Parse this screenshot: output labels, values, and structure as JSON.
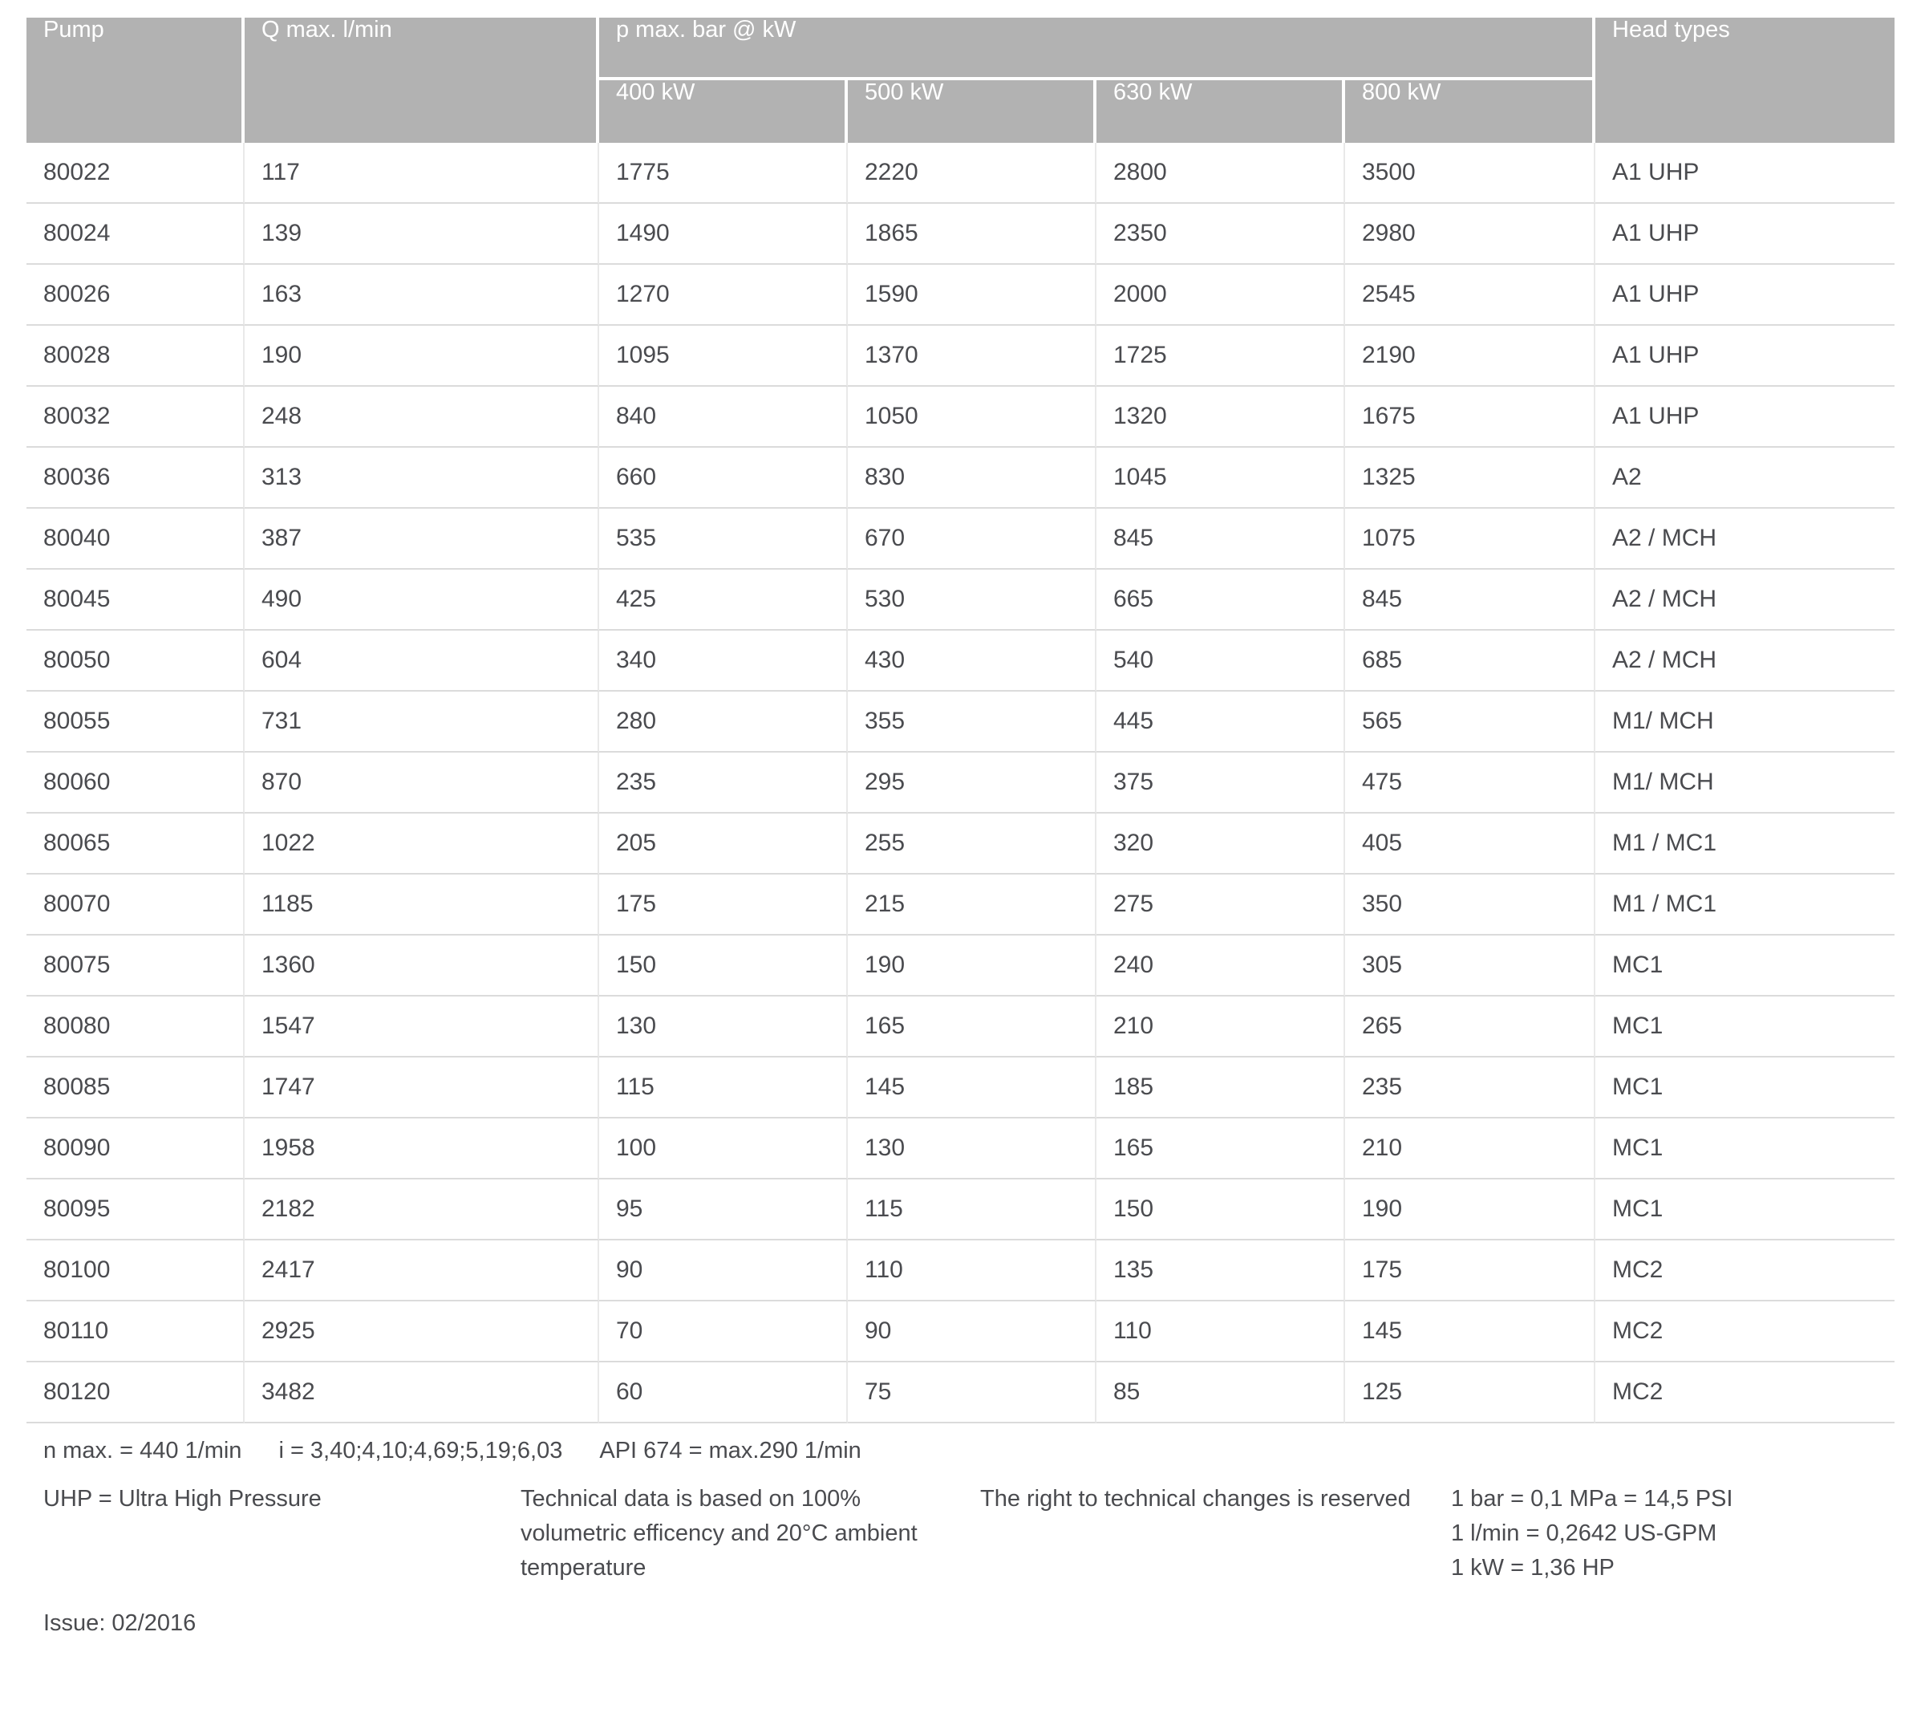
{
  "table": {
    "headers": {
      "pump": "Pump",
      "q_max": "Q max. l/min",
      "p_max_group": "p max. bar @ kW",
      "kw": [
        "400 kW",
        "500 kW",
        "630 kW",
        "800 kW"
      ],
      "head_types": "Head types"
    },
    "rows": [
      [
        "80022",
        "117",
        "1775",
        "2220",
        "2800",
        "3500",
        "A1 UHP"
      ],
      [
        "80024",
        "139",
        "1490",
        "1865",
        "2350",
        "2980",
        "A1 UHP"
      ],
      [
        "80026",
        "163",
        "1270",
        "1590",
        "2000",
        "2545",
        "A1 UHP"
      ],
      [
        "80028",
        "190",
        "1095",
        "1370",
        "1725",
        "2190",
        "A1 UHP"
      ],
      [
        "80032",
        "248",
        "840",
        "1050",
        "1320",
        "1675",
        "A1 UHP"
      ],
      [
        "80036",
        "313",
        "660",
        "830",
        "1045",
        "1325",
        "A2"
      ],
      [
        "80040",
        "387",
        "535",
        "670",
        "845",
        "1075",
        "A2 / MCH"
      ],
      [
        "80045",
        "490",
        "425",
        "530",
        "665",
        "845",
        "A2 / MCH"
      ],
      [
        "80050",
        "604",
        "340",
        "430",
        "540",
        "685",
        "A2 / MCH"
      ],
      [
        "80055",
        "731",
        "280",
        "355",
        "445",
        "565",
        "M1/ MCH"
      ],
      [
        "80060",
        "870",
        "235",
        "295",
        "375",
        "475",
        "M1/ MCH"
      ],
      [
        "80065",
        "1022",
        "205",
        "255",
        "320",
        "405",
        "M1 / MC1"
      ],
      [
        "80070",
        "1185",
        "175",
        "215",
        "275",
        "350",
        "M1 / MC1"
      ],
      [
        "80075",
        "1360",
        "150",
        "190",
        "240",
        "305",
        "MC1"
      ],
      [
        "80080",
        "1547",
        "130",
        "165",
        "210",
        "265",
        "MC1"
      ],
      [
        "80085",
        "1747",
        "115",
        "145",
        "185",
        "235",
        "MC1"
      ],
      [
        "80090",
        "1958",
        "100",
        "130",
        "165",
        "210",
        "MC1"
      ],
      [
        "80095",
        "2182",
        "95",
        "115",
        "150",
        "190",
        "MC1"
      ],
      [
        "80100",
        "2417",
        "90",
        "110",
        "135",
        "175",
        "MC2"
      ],
      [
        "80110",
        "2925",
        "70",
        "90",
        "110",
        "145",
        "MC2"
      ],
      [
        "80120",
        "3482",
        "60",
        "75",
        "85",
        "125",
        "MC2"
      ]
    ]
  },
  "footnotes": {
    "line1": [
      "n max. = 440 1/min",
      "i = 3,40;4,10;4,69;5,19;6,03",
      "API 674 = max.290 1/min"
    ],
    "uhp": "UHP = Ultra High Pressure",
    "technical_lines": [
      "Technical data is based on 100%",
      "volumetric efficency and 20°C ambient",
      "temperature"
    ],
    "rights": "The right to technical changes is reserved",
    "conversions": [
      "1 bar = 0,1 MPa = 14,5 PSI",
      "1 l/min = 0,2642 US-GPM",
      "1 kW = 1,36 HP"
    ],
    "issue": "Issue: 02/2016"
  },
  "colors": {
    "header_bg": "#b2b2b2",
    "header_text": "#ffffff",
    "body_text": "#4a4b4f",
    "row_border": "#dbdbdb"
  }
}
